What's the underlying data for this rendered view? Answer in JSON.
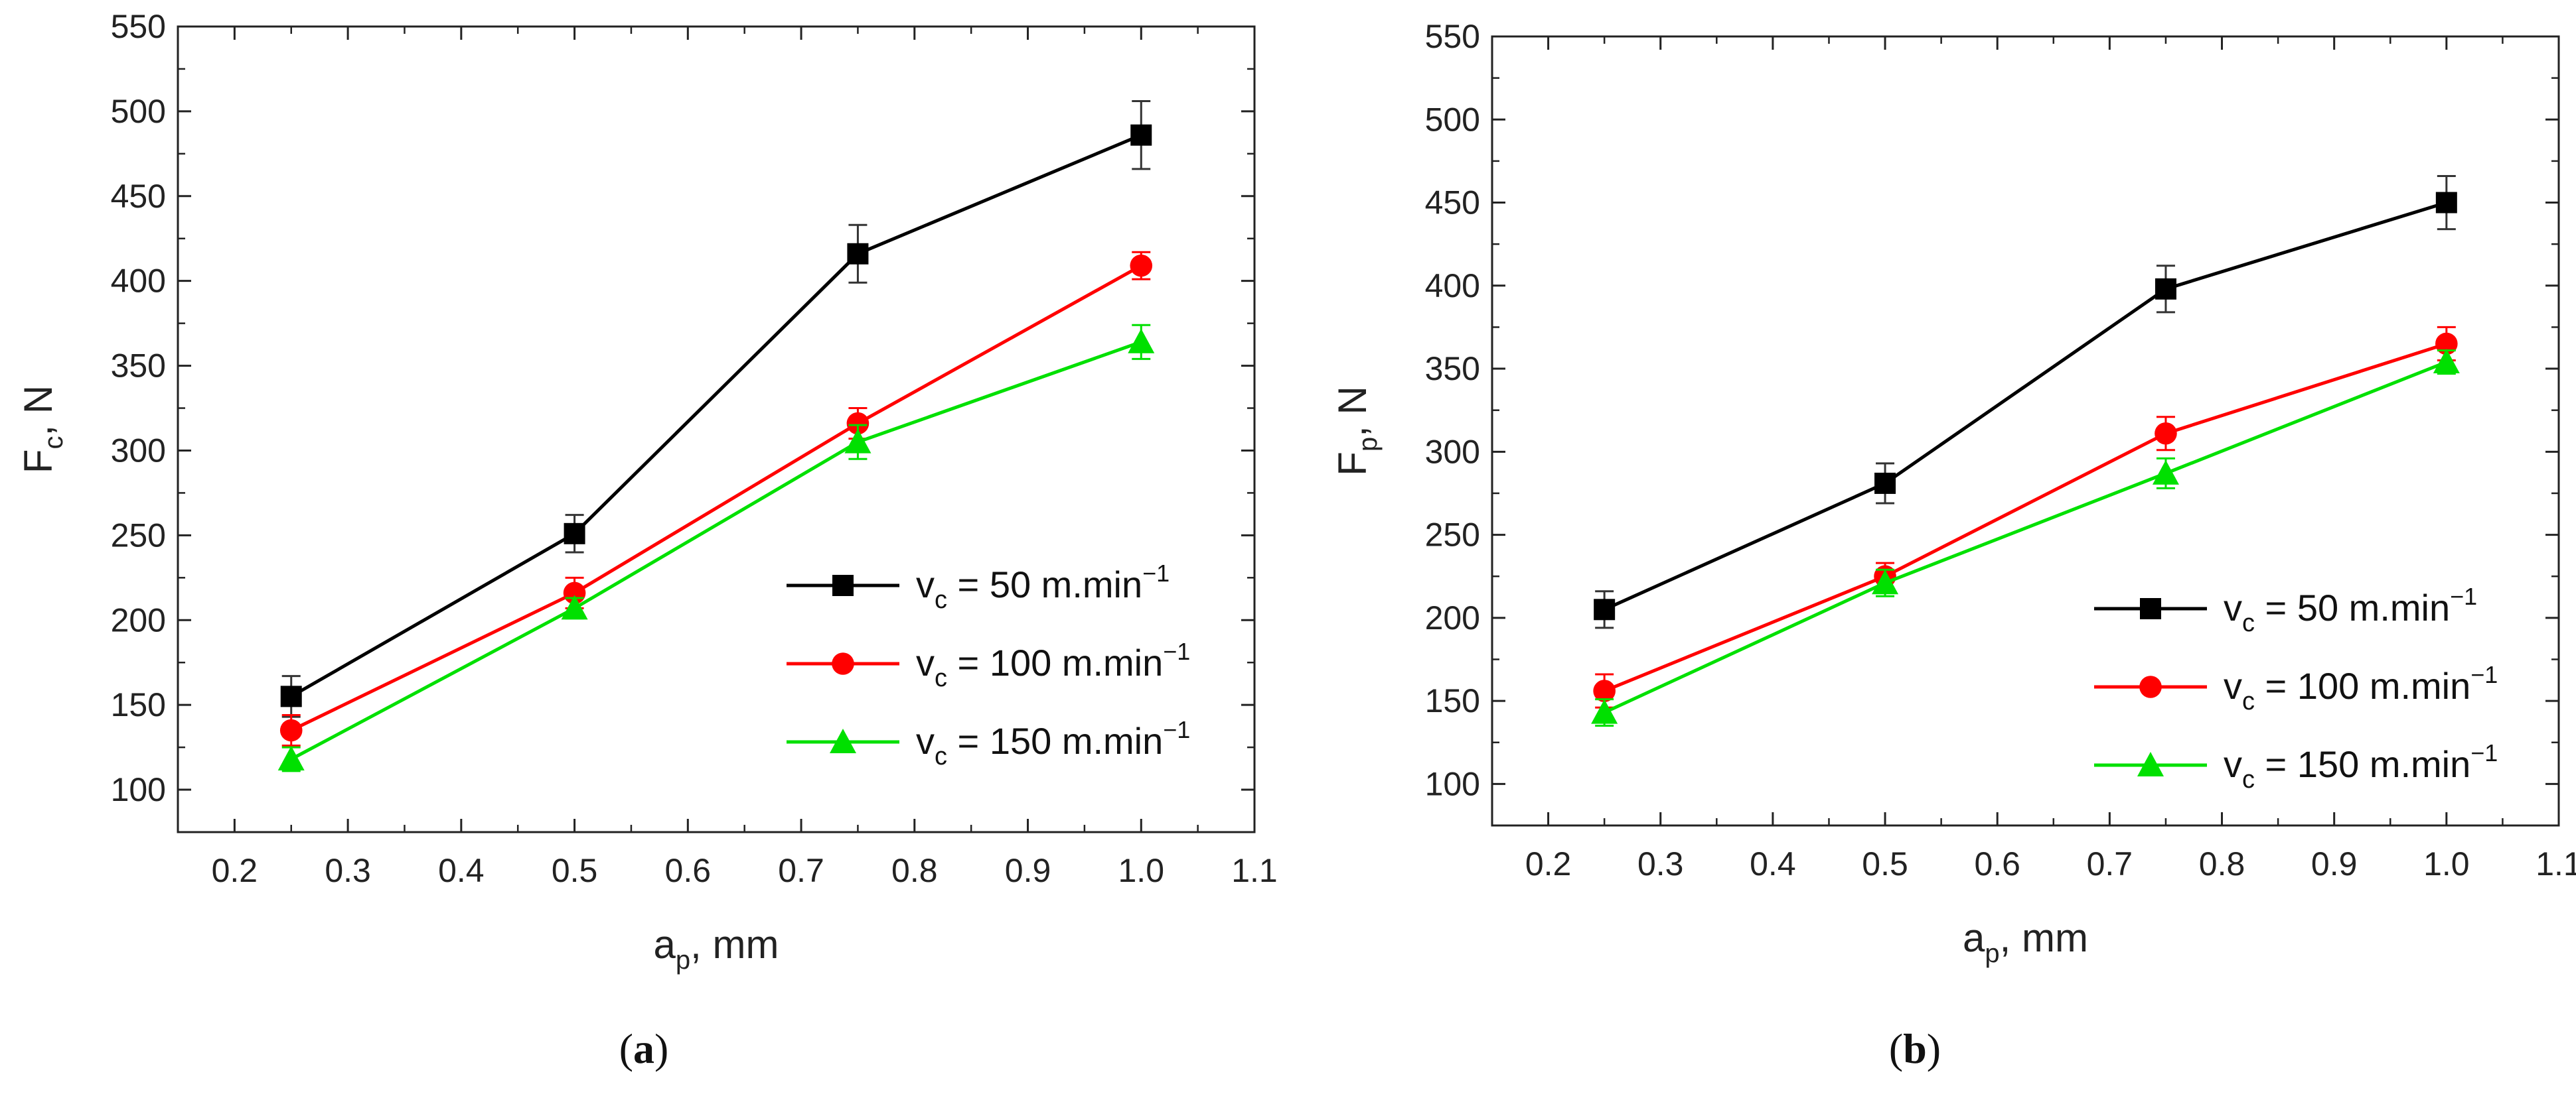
{
  "chart_data": [
    {
      "type": "line",
      "panel_label": "a",
      "x": [
        0.25,
        0.5,
        0.75,
        1.0
      ],
      "xlabel": {
        "main": "a",
        "sub": "p",
        "rest": ", mm"
      },
      "ylabel": {
        "main": "F",
        "sub": "c",
        "rest": ", N"
      },
      "xlim": [
        0.15,
        1.1
      ],
      "ylim": [
        75,
        550
      ],
      "xticks": [
        "0.2",
        "0.3",
        "0.4",
        "0.5",
        "0.6",
        "0.7",
        "0.8",
        "0.9",
        "1.0",
        "1.1"
      ],
      "yticks": [
        "100",
        "150",
        "200",
        "250",
        "300",
        "350",
        "400",
        "450",
        "500",
        "550"
      ],
      "legend_position": "right-center",
      "series": [
        {
          "name": "vc = 50 m.min-1",
          "label": {
            "pre": "v",
            "sub": "c",
            "mid": " = 50 m.min",
            "sup": "−1"
          },
          "color": "#000000",
          "marker": "square",
          "values": [
            155,
            251,
            416,
            486
          ],
          "errors": [
            12,
            11,
            17,
            20
          ]
        },
        {
          "name": "vc = 100 m.min-1",
          "label": {
            "pre": "v",
            "sub": "c",
            "mid": " = 100 m.min",
            "sup": "−1"
          },
          "color": "#ff0000",
          "marker": "circle",
          "values": [
            135,
            216,
            316,
            409
          ],
          "errors": [
            9,
            9,
            9,
            8
          ]
        },
        {
          "name": "vc = 150 m.min-1",
          "label": {
            "pre": "v",
            "sub": "c",
            "mid": " = 150 m.min",
            "sup": "−1"
          },
          "color": "#00e000",
          "marker": "triangle",
          "values": [
            118,
            207,
            305,
            364
          ],
          "errors": [
            7,
            6,
            10,
            10
          ]
        }
      ]
    },
    {
      "type": "line",
      "panel_label": "b",
      "x": [
        0.25,
        0.5,
        0.75,
        1.0
      ],
      "xlabel": {
        "main": "a",
        "sub": "p",
        "rest": ", mm"
      },
      "ylabel": {
        "main": "F",
        "sub": "p",
        "rest": ", N"
      },
      "xlim": [
        0.15,
        1.1
      ],
      "ylim": [
        75,
        550
      ],
      "xticks": [
        "0.2",
        "0.3",
        "0.4",
        "0.5",
        "0.6",
        "0.7",
        "0.8",
        "0.9",
        "1.0",
        "1.1"
      ],
      "yticks": [
        "100",
        "150",
        "200",
        "250",
        "300",
        "350",
        "400",
        "450",
        "500",
        "550"
      ],
      "legend_position": "right-center",
      "series": [
        {
          "name": "vc = 50 m.min-1",
          "label": {
            "pre": "v",
            "sub": "c",
            "mid": " = 50 m.min",
            "sup": "−1"
          },
          "color": "#000000",
          "marker": "square",
          "values": [
            205,
            281,
            398,
            450
          ],
          "errors": [
            11,
            12,
            14,
            16
          ]
        },
        {
          "name": "vc = 100 m.min-1",
          "label": {
            "pre": "v",
            "sub": "c",
            "mid": " = 100 m.min",
            "sup": "−1"
          },
          "color": "#ff0000",
          "marker": "circle",
          "values": [
            156,
            225,
            311,
            365
          ],
          "errors": [
            10,
            8,
            10,
            10
          ]
        },
        {
          "name": "vc = 150 m.min-1",
          "label": {
            "pre": "v",
            "sub": "c",
            "mid": " = 150 m.min",
            "sup": "−1"
          },
          "color": "#00e000",
          "marker": "triangle",
          "values": [
            143,
            221,
            287,
            354
          ],
          "errors": [
            8,
            8,
            9,
            7
          ]
        }
      ]
    }
  ],
  "captions": {
    "a": "a",
    "b": "b"
  }
}
